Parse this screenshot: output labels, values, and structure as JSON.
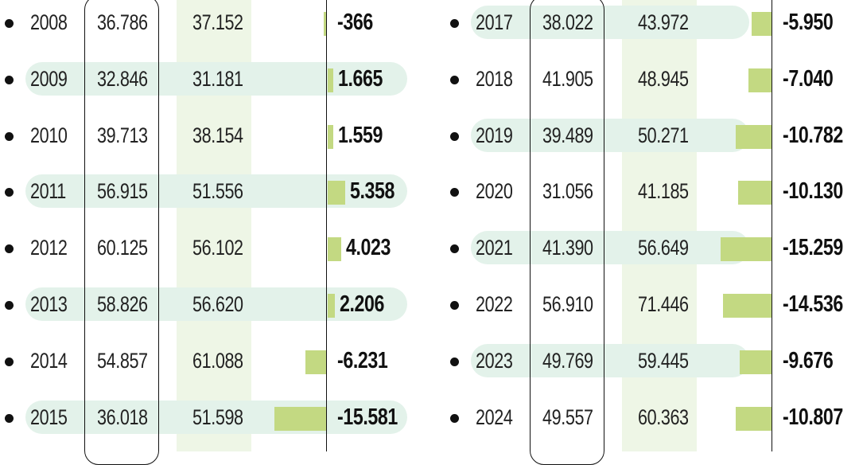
{
  "colors": {
    "bar": "#c3d982",
    "row_highlight": "#e3f2ea",
    "import_band": "#eef6e6",
    "text": "#222222"
  },
  "chart_data": {
    "type": "table",
    "columns": [
      "year",
      "value_a",
      "value_b",
      "balance"
    ],
    "bar_column": "balance",
    "bar_axis_range": [
      -16000,
      6000
    ],
    "rows": [
      {
        "year": "2008",
        "a": "36.786",
        "b": "37.152",
        "balance": "-366",
        "value": -366
      },
      {
        "year": "2009",
        "a": "32.846",
        "b": "31.181",
        "balance": "1.665",
        "value": 1665
      },
      {
        "year": "2010",
        "a": "39.713",
        "b": "38.154",
        "balance": "1.559",
        "value": 1559
      },
      {
        "year": "2011",
        "a": "56.915",
        "b": "51.556",
        "balance": "5.358",
        "value": 5358
      },
      {
        "year": "2012",
        "a": "60.125",
        "b": "56.102",
        "balance": "4.023",
        "value": 4023
      },
      {
        "year": "2013",
        "a": "58.826",
        "b": "56.620",
        "balance": "2.206",
        "value": 2206
      },
      {
        "year": "2014",
        "a": "54.857",
        "b": "61.088",
        "balance": "-6.231",
        "value": -6231
      },
      {
        "year": "2015",
        "a": "36.018",
        "b": "51.598",
        "balance": "-15.581",
        "value": -15581
      },
      {
        "year": "2017",
        "a": "38.022",
        "b": "43.972",
        "balance": "-5.950",
        "value": -5950
      },
      {
        "year": "2018",
        "a": "41.905",
        "b": "48.945",
        "balance": "-7.040",
        "value": -7040
      },
      {
        "year": "2019",
        "a": "39.489",
        "b": "50.271",
        "balance": "-10.782",
        "value": -10782
      },
      {
        "year": "2020",
        "a": "31.056",
        "b": "41.185",
        "balance": "-10.130",
        "value": -10130
      },
      {
        "year": "2021",
        "a": "41.390",
        "b": "56.649",
        "balance": "-15.259",
        "value": -15259
      },
      {
        "year": "2022",
        "a": "56.910",
        "b": "71.446",
        "balance": "-14.536",
        "value": -14536
      },
      {
        "year": "2023",
        "a": "49.769",
        "b": "59.445",
        "balance": "-9.676",
        "value": -9676
      },
      {
        "year": "2024",
        "a": "49.557",
        "b": "60.363",
        "balance": "-10.807",
        "value": -10807
      }
    ]
  }
}
